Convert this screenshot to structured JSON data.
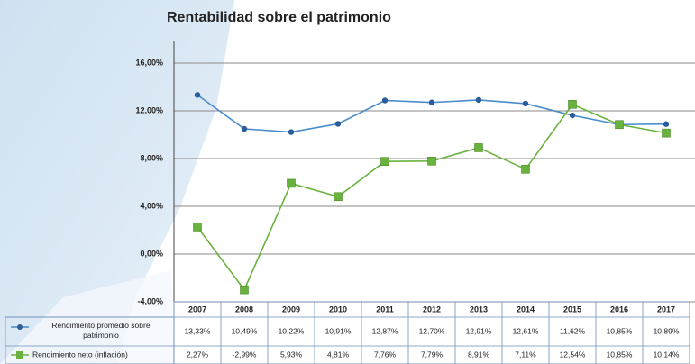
{
  "chart_data": {
    "type": "line",
    "title": "Rentabilidad sobre el patrimonio",
    "categories": [
      "2007",
      "2008",
      "2009",
      "2010",
      "2011",
      "2012",
      "2013",
      "2014",
      "2015",
      "2016",
      "2017"
    ],
    "series": [
      {
        "name": "Rendimiento promedio sobre patrimonio",
        "color": "#4a8ccc",
        "marker": "circle",
        "values": [
          13.33,
          10.49,
          10.22,
          10.91,
          12.87,
          12.7,
          12.91,
          12.61,
          11.62,
          10.85,
          10.89
        ],
        "value_labels": [
          "13,33%",
          "10,49%",
          "10,22%",
          "10,91%",
          "12,87%",
          "12,70%",
          "12,91%",
          "12,61%",
          "11,62%",
          "10,85%",
          "10,89%"
        ]
      },
      {
        "name": "Rendimiento neto (inflación)",
        "color": "#6ab23e",
        "marker": "square",
        "values": [
          2.27,
          -2.99,
          5.93,
          4.81,
          7.76,
          7.79,
          8.91,
          7.11,
          12.54,
          10.85,
          10.14
        ],
        "value_labels": [
          "2,27%",
          "-2,99%",
          "5,93%",
          "4,81%",
          "7,76%",
          "7,79%",
          "8,91%",
          "7,11%",
          "12,54%",
          "10,85%",
          "10,14%"
        ]
      }
    ],
    "ylim": [
      -4,
      16
    ],
    "yticks": [
      {
        "value": -4,
        "label": "-4,00%"
      },
      {
        "value": 0,
        "label": "0,00%"
      },
      {
        "value": 4,
        "label": "4,00%"
      },
      {
        "value": 8,
        "label": "8,00%"
      },
      {
        "value": 12,
        "label": "12,00%"
      },
      {
        "value": 16,
        "label": "16,00%"
      }
    ],
    "grid": true
  }
}
